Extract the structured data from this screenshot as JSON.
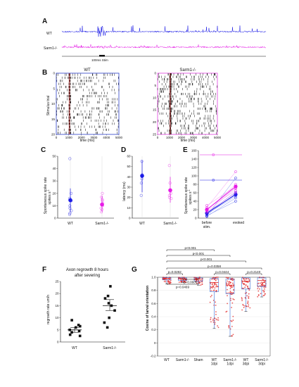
{
  "panels": {
    "A": {
      "letter": "A",
      "trace_labels": [
        "WT",
        "Sarm1-/-"
      ],
      "stim_label": "100ms Stim",
      "colors": {
        "wt": "#1a1ae6",
        "sarm": "#e61ae6"
      }
    },
    "B": {
      "letter": "B",
      "xlabel": "time (ms)",
      "ylabel": "Stimulus trial",
      "rasters": [
        {
          "title": "WT",
          "xticks": [
            "0",
            "1000",
            "2000",
            "3000",
            "4000",
            "5000"
          ],
          "yticks": [
            "0",
            "5",
            "10",
            "15",
            "20"
          ],
          "frame_color": "#2a3ec8"
        },
        {
          "title": "Sarm1-/-",
          "xticks": [
            "0",
            "1000",
            "2000",
            "3000",
            "4000",
            "5000"
          ],
          "yticks": [
            "0",
            "5",
            "10",
            "15",
            "20",
            "25"
          ],
          "frame_color": "#e040e0"
        }
      ]
    },
    "C": {
      "letter": "C",
      "ylabel_lines": [
        "Spontaneous spike rate",
        "spikes s"
      ],
      "ylabel_sup": "-1",
      "yticks": [
        "0",
        "10",
        "20",
        "30",
        "40",
        "50"
      ],
      "categories": [
        "WT",
        "Sarm1-/-"
      ]
    },
    "D": {
      "letter": "D",
      "ylabel": "latency (ms)",
      "yticks": [
        "0",
        "10",
        "20",
        "30",
        "40",
        "50",
        "60"
      ],
      "categories": [
        "WT",
        "Sarm1-/-"
      ]
    },
    "E": {
      "letter": "E",
      "ylabel_lines": [
        "Spontaneous spike rate",
        "spikes s"
      ],
      "ylabel_sup": "-1",
      "yticks": [
        "0",
        "20",
        "40",
        "60",
        "80",
        "100",
        "120",
        "140",
        "160"
      ],
      "categories": [
        "before stim.",
        "evoked"
      ]
    },
    "F": {
      "letter": "F",
      "title_lines": [
        "Axon regrowth 8 hours",
        "after severing"
      ],
      "ylabel": "regrowth rate  um/h",
      "yticks": [
        "0",
        "5",
        "10",
        "15",
        "20",
        "25"
      ],
      "categories": [
        "WT",
        "Sarm1-/-"
      ]
    },
    "G": {
      "letter": "G",
      "ylabel": "Cosine of larval orientation",
      "yticks": [
        "-0.2",
        "0",
        "0.2",
        "0.4",
        "0.6",
        "0.8",
        "1.0"
      ],
      "categories": [
        [
          "WT"
        ],
        [
          "Sarm1-/-"
        ],
        [
          "Sham"
        ],
        [
          "WT",
          "1dpi"
        ],
        [
          "Sarm1-/-",
          "1dpi"
        ],
        [
          "WT",
          "3dpi"
        ],
        [
          "Sarm1-/-",
          "3dpi"
        ]
      ],
      "brackets": [
        {
          "from": 0,
          "to": 6,
          "label": "p=0.0358"
        },
        {
          "from": 0,
          "to": 5,
          "label": "p<0.001"
        },
        {
          "from": 0,
          "to": 4,
          "label": "p<0.001"
        },
        {
          "from": 0,
          "to": 3,
          "label": "p<0.001"
        },
        {
          "from": 0,
          "to": 1,
          "label": "p=0.0282"
        },
        {
          "from": 3,
          "to": 4,
          "label": "p=0.0444"
        },
        {
          "from": 5,
          "to": 6,
          "label": "p=0.2140"
        },
        {
          "from": 1,
          "to": 2,
          "label": "p=0.0606"
        },
        {
          "from": 0,
          "to": 2,
          "label": "p=0.0469"
        }
      ]
    }
  },
  "chart_data": [
    {
      "type": "scatter",
      "panel": "C",
      "categories": [
        "WT",
        "Sarm1-/-"
      ],
      "ylim": [
        0,
        50
      ],
      "series": [
        {
          "name": "WT",
          "points": [
            48,
            20,
            16,
            14,
            10,
            8,
            6,
            4,
            3
          ],
          "mean": 14.5,
          "sd_range": [
            5,
            24
          ]
        },
        {
          "name": "Sarm1-/-",
          "points": [
            20,
            17,
            15,
            14,
            12,
            10,
            8,
            7,
            5
          ],
          "mean": 11,
          "sd_range": [
            5,
            18
          ]
        }
      ]
    },
    {
      "type": "scatter",
      "panel": "D",
      "categories": [
        "WT",
        "Sarm1-/-"
      ],
      "ylim": [
        0,
        60
      ],
      "series": [
        {
          "name": "WT",
          "points": [
            55,
            42,
            38,
            34,
            22
          ],
          "mean": 41,
          "sd_range": [
            25,
            56
          ]
        },
        {
          "name": "Sarm1-/-",
          "points": [
            51,
            34,
            24,
            22,
            20,
            19
          ],
          "mean": 27,
          "sd_range": [
            15,
            40
          ]
        }
      ]
    },
    {
      "type": "line",
      "panel": "E",
      "categories": [
        "before stim.",
        "evoked"
      ],
      "ylim": [
        0,
        160
      ],
      "series": [
        {
          "name": "WT",
          "pairs": [
            [
              5,
              95
            ],
            [
              8,
              58
            ],
            [
              10,
              52
            ],
            [
              6,
              40
            ],
            [
              4,
              48
            ],
            [
              12,
              62
            ]
          ],
          "mean": [
            12,
            56
          ]
        },
        {
          "name": "Sarm1-/-",
          "pairs": [
            [
              25,
              110
            ],
            [
              18,
              80
            ],
            [
              15,
              70
            ],
            [
              20,
              72
            ],
            [
              14,
              60
            ],
            [
              22,
              65
            ],
            [
              30,
              75
            ]
          ],
          "mean": [
            20,
            75
          ]
        }
      ],
      "max_markers": [
        {
          "name": "Sarm1-/-",
          "value": 150
        },
        {
          "name": "WT",
          "value": 90
        }
      ]
    },
    {
      "type": "scatter",
      "panel": "F",
      "categories": [
        "WT",
        "Sarm1-/-"
      ],
      "ylim": [
        0,
        25
      ],
      "series": [
        {
          "name": "WT",
          "points": [
            9,
            7,
            6.5,
            6,
            5,
            4.5,
            4,
            3,
            2.5
          ],
          "mean": 5,
          "sem_range": [
            4,
            6
          ]
        },
        {
          "name": "Sarm1-/-",
          "points": [
            23,
            19,
            18,
            16,
            15,
            13,
            10,
            8,
            6
          ],
          "mean": 15,
          "sem_range": [
            13,
            17.5
          ]
        }
      ]
    },
    {
      "type": "box",
      "panel": "G",
      "categories": [
        "WT",
        "Sarm1-/-",
        "Sham",
        "WT 1dpi",
        "Sarm1-/- 1dpi",
        "WT 3dpi",
        "Sarm1-/- 3dpi"
      ],
      "ylim": [
        -0.2,
        1.0
      ],
      "series": [
        {
          "name": "WT",
          "min": 0.9,
          "q1": 0.96,
          "median": 0.985,
          "q3": 0.995,
          "max": 1.0,
          "n": 40
        },
        {
          "name": "Sarm1-/-",
          "min": 0.92,
          "q1": 0.95,
          "median": 0.975,
          "q3": 0.99,
          "max": 1.0,
          "n": 40
        },
        {
          "name": "Sham",
          "min": 0.88,
          "q1": 0.94,
          "median": 0.97,
          "q3": 0.99,
          "max": 1.0,
          "n": 40
        },
        {
          "name": "WT 1dpi",
          "min": 0.22,
          "q1": 0.78,
          "median": 0.92,
          "q3": 0.98,
          "max": 1.0,
          "n": 70
        },
        {
          "name": "Sarm1-/- 1dpi",
          "min": 0.1,
          "q1": 0.75,
          "median": 0.88,
          "q3": 0.97,
          "max": 1.0,
          "n": 70
        },
        {
          "name": "WT 3dpi",
          "min": 0.48,
          "q1": 0.82,
          "median": 0.94,
          "q3": 0.99,
          "max": 1.0,
          "n": 60
        },
        {
          "name": "Sarm1-/- 3dpi",
          "min": 0.7,
          "q1": 0.86,
          "median": 0.95,
          "q3": 0.99,
          "max": 1.0,
          "n": 50
        }
      ]
    }
  ]
}
